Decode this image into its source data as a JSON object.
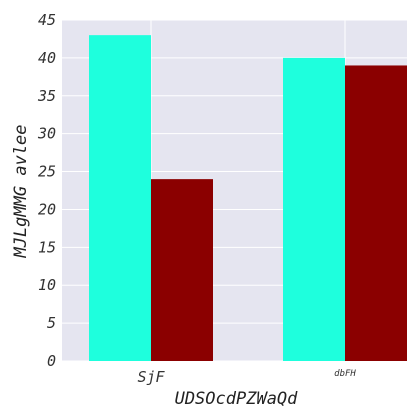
{
  "chart_data": {
    "type": "bar",
    "categories": [
      "SjF",
      "dbFH"
    ],
    "series": [
      {
        "values": [
          43,
          40
        ],
        "color": "#1effdd"
      },
      {
        "values": [
          24,
          39
        ],
        "color": "#8b0000"
      }
    ],
    "xlabel": "UDSOcdPZWaQd",
    "ylabel": "MJLgMMG avlee",
    "ylim": [
      0,
      45
    ],
    "yticks": [
      0,
      5,
      10,
      15,
      20,
      25,
      30,
      35,
      40,
      45
    ],
    "grid": true,
    "background": "#e5e5f0"
  }
}
